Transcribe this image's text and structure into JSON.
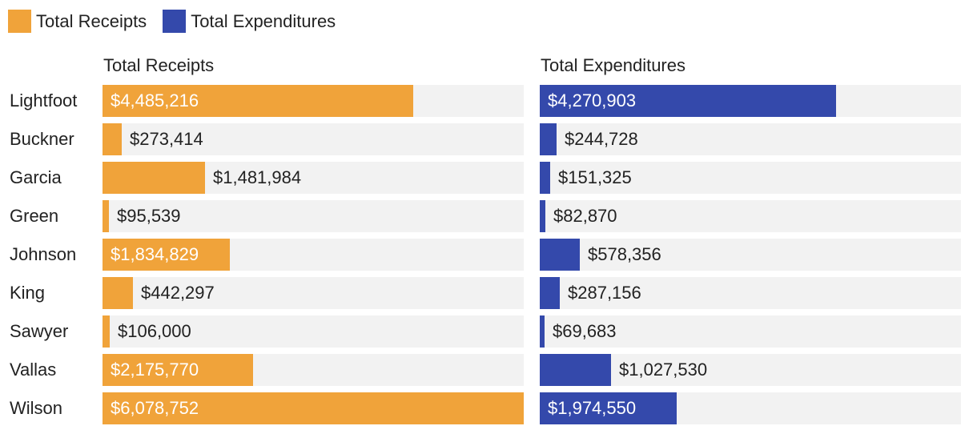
{
  "legend": [
    {
      "label": "Total Receipts",
      "color": "#f0a33a"
    },
    {
      "label": "Total Expenditures",
      "color": "#3449ab"
    }
  ],
  "chart_data": {
    "type": "bar",
    "orientation": "horizontal",
    "categories": [
      "Lightfoot",
      "Buckner",
      "Garcia",
      "Green",
      "Johnson",
      "King",
      "Sawyer",
      "Vallas",
      "Wilson"
    ],
    "series": [
      {
        "name": "Total Receipts",
        "color": "#f0a33a",
        "values": [
          4485216,
          273414,
          1481984,
          95539,
          1834829,
          442297,
          106000,
          2175770,
          6078752
        ],
        "labels": [
          "$4,485,216",
          "$273,414",
          "$1,481,984",
          "$95,539",
          "$1,834,829",
          "$442,297",
          "$106,000",
          "$2,175,770",
          "$6,078,752"
        ]
      },
      {
        "name": "Total Expenditures",
        "color": "#3449ab",
        "values": [
          4270903,
          244728,
          151325,
          82870,
          578356,
          287156,
          69683,
          1027530,
          1974550
        ],
        "labels": [
          "$4,270,903",
          "$244,728",
          "$151,325",
          "$82,870",
          "$578,356",
          "$287,156",
          "$69,683",
          "$1,027,530",
          "$1,974,550"
        ]
      }
    ],
    "panel_titles": [
      "Total Receipts",
      "Total Expenditures"
    ],
    "xlim": [
      0,
      6078752
    ],
    "grid": false,
    "legend_position": "top-left"
  }
}
